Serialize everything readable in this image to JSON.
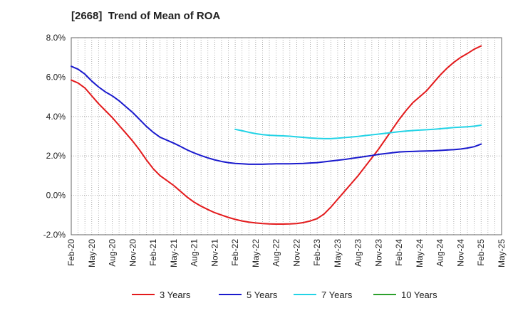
{
  "chart_data": {
    "type": "line",
    "title": "[2668]  Trend of Mean of ROA",
    "xlabel": "",
    "ylabel": "",
    "x_ticks": [
      "Feb-20",
      "May-20",
      "Aug-20",
      "Nov-20",
      "Feb-21",
      "May-21",
      "Aug-21",
      "Nov-21",
      "Feb-22",
      "May-22",
      "Aug-22",
      "Nov-22",
      "Feb-23",
      "May-23",
      "Aug-23",
      "Nov-23",
      "Feb-24",
      "May-24",
      "Aug-24",
      "Nov-24",
      "Feb-25",
      "May-25"
    ],
    "y_ticks": [
      "8.0%",
      "6.0%",
      "4.0%",
      "2.0%",
      "0.0%",
      "-2.0%"
    ],
    "ylim": [
      -2.0,
      8.0
    ],
    "grid": true,
    "legend_position": "bottom",
    "series": [
      {
        "name": "3 Years",
        "color": "#e31a1c",
        "x": [
          "Feb-20",
          "Mar-20",
          "Apr-20",
          "May-20",
          "Jun-20",
          "Jul-20",
          "Aug-20",
          "Sep-20",
          "Oct-20",
          "Nov-20",
          "Dec-20",
          "Jan-21",
          "Feb-21",
          "Mar-21",
          "Apr-21",
          "May-21",
          "Jun-21",
          "Jul-21",
          "Aug-21",
          "Sep-21",
          "Oct-21",
          "Nov-21",
          "Dec-21",
          "Jan-22",
          "Feb-22",
          "Mar-22",
          "Apr-22",
          "May-22",
          "Jun-22",
          "Jul-22",
          "Aug-22",
          "Sep-22",
          "Oct-22",
          "Nov-22",
          "Dec-22",
          "Jan-23",
          "Feb-23",
          "Mar-23",
          "Apr-23",
          "May-23",
          "Jun-23",
          "Jul-23",
          "Aug-23",
          "Sep-23",
          "Oct-23",
          "Nov-23",
          "Dec-23",
          "Jan-24",
          "Feb-24",
          "Mar-24",
          "Apr-24",
          "May-24",
          "Jun-24",
          "Jul-24",
          "Aug-24",
          "Sep-24",
          "Oct-24",
          "Nov-24",
          "Dec-24",
          "Jan-25",
          "Feb-25"
        ],
        "values": [
          5.85,
          5.7,
          5.45,
          5.05,
          4.65,
          4.3,
          3.95,
          3.55,
          3.15,
          2.75,
          2.3,
          1.8,
          1.35,
          1.0,
          0.75,
          0.5,
          0.2,
          -0.1,
          -0.35,
          -0.55,
          -0.72,
          -0.88,
          -1.0,
          -1.12,
          -1.22,
          -1.3,
          -1.36,
          -1.4,
          -1.43,
          -1.45,
          -1.46,
          -1.46,
          -1.45,
          -1.43,
          -1.38,
          -1.3,
          -1.18,
          -0.95,
          -0.6,
          -0.2,
          0.2,
          0.6,
          1.0,
          1.45,
          1.9,
          2.35,
          2.85,
          3.35,
          3.85,
          4.3,
          4.7,
          5.0,
          5.3,
          5.7,
          6.1,
          6.45,
          6.75,
          7.0,
          7.2,
          7.42,
          7.58
        ]
      },
      {
        "name": "5 Years",
        "color": "#1a1acd",
        "x": [
          "Feb-20",
          "Mar-20",
          "Apr-20",
          "May-20",
          "Jun-20",
          "Jul-20",
          "Aug-20",
          "Sep-20",
          "Oct-20",
          "Nov-20",
          "Dec-20",
          "Jan-21",
          "Feb-21",
          "Mar-21",
          "Apr-21",
          "May-21",
          "Jun-21",
          "Jul-21",
          "Aug-21",
          "Sep-21",
          "Oct-21",
          "Nov-21",
          "Dec-21",
          "Jan-22",
          "Feb-22",
          "Mar-22",
          "Apr-22",
          "May-22",
          "Jun-22",
          "Jul-22",
          "Aug-22",
          "Sep-22",
          "Oct-22",
          "Nov-22",
          "Dec-22",
          "Jan-23",
          "Feb-23",
          "Mar-23",
          "Apr-23",
          "May-23",
          "Jun-23",
          "Jul-23",
          "Aug-23",
          "Sep-23",
          "Oct-23",
          "Nov-23",
          "Dec-23",
          "Jan-24",
          "Feb-24",
          "Mar-24",
          "Apr-24",
          "May-24",
          "Jun-24",
          "Jul-24",
          "Aug-24",
          "Sep-24",
          "Oct-24",
          "Nov-24",
          "Dec-24",
          "Jan-25",
          "Feb-25"
        ],
        "values": [
          6.55,
          6.4,
          6.15,
          5.8,
          5.5,
          5.25,
          5.05,
          4.8,
          4.5,
          4.2,
          3.85,
          3.5,
          3.2,
          2.95,
          2.8,
          2.65,
          2.48,
          2.3,
          2.15,
          2.02,
          1.9,
          1.8,
          1.72,
          1.66,
          1.62,
          1.6,
          1.58,
          1.58,
          1.58,
          1.59,
          1.6,
          1.6,
          1.6,
          1.61,
          1.62,
          1.64,
          1.66,
          1.7,
          1.74,
          1.78,
          1.82,
          1.87,
          1.92,
          1.97,
          2.02,
          2.08,
          2.12,
          2.16,
          2.2,
          2.22,
          2.23,
          2.24,
          2.25,
          2.26,
          2.28,
          2.3,
          2.32,
          2.35,
          2.4,
          2.47,
          2.6
        ]
      },
      {
        "name": "7 Years",
        "color": "#22d3e6",
        "x": [
          "Feb-22",
          "Mar-22",
          "Apr-22",
          "May-22",
          "Jun-22",
          "Jul-22",
          "Aug-22",
          "Sep-22",
          "Oct-22",
          "Nov-22",
          "Dec-22",
          "Jan-23",
          "Feb-23",
          "Mar-23",
          "Apr-23",
          "May-23",
          "Jun-23",
          "Jul-23",
          "Aug-23",
          "Sep-23",
          "Oct-23",
          "Nov-23",
          "Dec-23",
          "Jan-24",
          "Feb-24",
          "Mar-24",
          "Apr-24",
          "May-24",
          "Jun-24",
          "Jul-24",
          "Aug-24",
          "Sep-24",
          "Oct-24",
          "Nov-24",
          "Dec-24",
          "Jan-25",
          "Feb-25"
        ],
        "values": [
          3.35,
          3.28,
          3.2,
          3.13,
          3.08,
          3.05,
          3.03,
          3.02,
          3.0,
          2.97,
          2.94,
          2.91,
          2.89,
          2.88,
          2.88,
          2.9,
          2.93,
          2.96,
          2.99,
          3.03,
          3.07,
          3.11,
          3.15,
          3.19,
          3.23,
          3.26,
          3.29,
          3.31,
          3.33,
          3.35,
          3.38,
          3.41,
          3.44,
          3.46,
          3.48,
          3.51,
          3.56
        ]
      },
      {
        "name": "10 Years",
        "color": "#2ca02c",
        "x": [],
        "values": []
      }
    ]
  }
}
